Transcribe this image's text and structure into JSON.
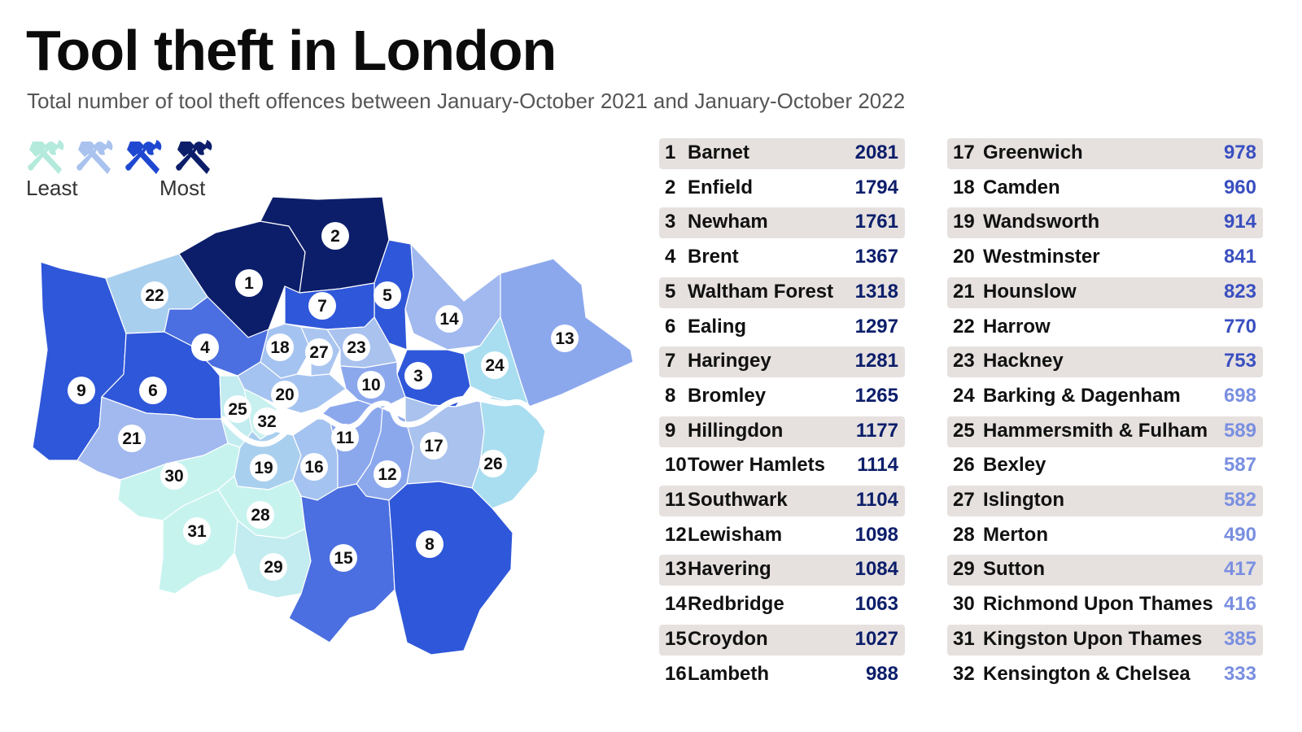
{
  "title": "Tool theft in London",
  "subtitle": "Total number of tool theft offences between January-October 2021 and January-October 2022",
  "legend": {
    "least_label": "Least",
    "most_label": "Most"
  },
  "colors": {
    "tier1": "#b3eadc",
    "tier2": "#a9c2ee",
    "tier3": "#1f48d1",
    "tier4": "#0c1e6a",
    "value_dark": "#0c1e6a",
    "value_mid": "#3a4fc0",
    "value_light": "#7a8fe0",
    "row_shade": "#e6e1df"
  },
  "table_left": [
    {
      "rank": "1",
      "name": "Barnet",
      "value": "2081"
    },
    {
      "rank": "2",
      "name": "Enfield",
      "value": "1794"
    },
    {
      "rank": "3",
      "name": "Newham",
      "value": "1761"
    },
    {
      "rank": "4",
      "name": "Brent",
      "value": "1367"
    },
    {
      "rank": "5",
      "name": "Waltham Forest",
      "value": "1318"
    },
    {
      "rank": "6",
      "name": "Ealing",
      "value": "1297"
    },
    {
      "rank": "7",
      "name": "Haringey",
      "value": "1281"
    },
    {
      "rank": "8",
      "name": "Bromley",
      "value": "1265"
    },
    {
      "rank": "9",
      "name": "Hillingdon",
      "value": "1177"
    },
    {
      "rank": "10",
      "name": "Tower Hamlets",
      "value": "1114"
    },
    {
      "rank": "11",
      "name": "Southwark",
      "value": "1104"
    },
    {
      "rank": "12",
      "name": "Lewisham",
      "value": "1098"
    },
    {
      "rank": "13",
      "name": "Havering",
      "value": "1084"
    },
    {
      "rank": "14",
      "name": "Redbridge",
      "value": "1063"
    },
    {
      "rank": "15",
      "name": "Croydon",
      "value": "1027"
    },
    {
      "rank": "16",
      "name": "Lambeth",
      "value": "988"
    }
  ],
  "table_right": [
    {
      "rank": "17",
      "name": "Greenwich",
      "value": "978"
    },
    {
      "rank": "18",
      "name": "Camden",
      "value": "960"
    },
    {
      "rank": "19",
      "name": "Wandsworth",
      "value": "914"
    },
    {
      "rank": "20",
      "name": "Westminster",
      "value": "841"
    },
    {
      "rank": "21",
      "name": "Hounslow",
      "value": "823"
    },
    {
      "rank": "22",
      "name": "Harrow",
      "value": "770"
    },
    {
      "rank": "23",
      "name": "Hackney",
      "value": "753"
    },
    {
      "rank": "24",
      "name": "Barking & Dagenham",
      "value": "698"
    },
    {
      "rank": "25",
      "name": "Hammersmith & Fulham",
      "value": "589"
    },
    {
      "rank": "26",
      "name": "Bexley",
      "value": "587"
    },
    {
      "rank": "27",
      "name": "Islington",
      "value": "582"
    },
    {
      "rank": "28",
      "name": "Merton",
      "value": "490"
    },
    {
      "rank": "29",
      "name": "Sutton",
      "value": "417"
    },
    {
      "rank": "30",
      "name": "Richmond Upon Thames",
      "value": "416"
    },
    {
      "rank": "31",
      "name": "Kingston Upon Thames",
      "value": "385"
    },
    {
      "rank": "32",
      "name": "Kensington & Chelsea",
      "value": "333"
    }
  ],
  "map_labels": [
    "1",
    "2",
    "3",
    "4",
    "5",
    "6",
    "7",
    "8",
    "9",
    "10",
    "11",
    "12",
    "13",
    "14",
    "15",
    "16",
    "17",
    "18",
    "19",
    "20",
    "21",
    "22",
    "23",
    "24",
    "25",
    "26",
    "27",
    "28",
    "29",
    "30",
    "31",
    "32"
  ]
}
